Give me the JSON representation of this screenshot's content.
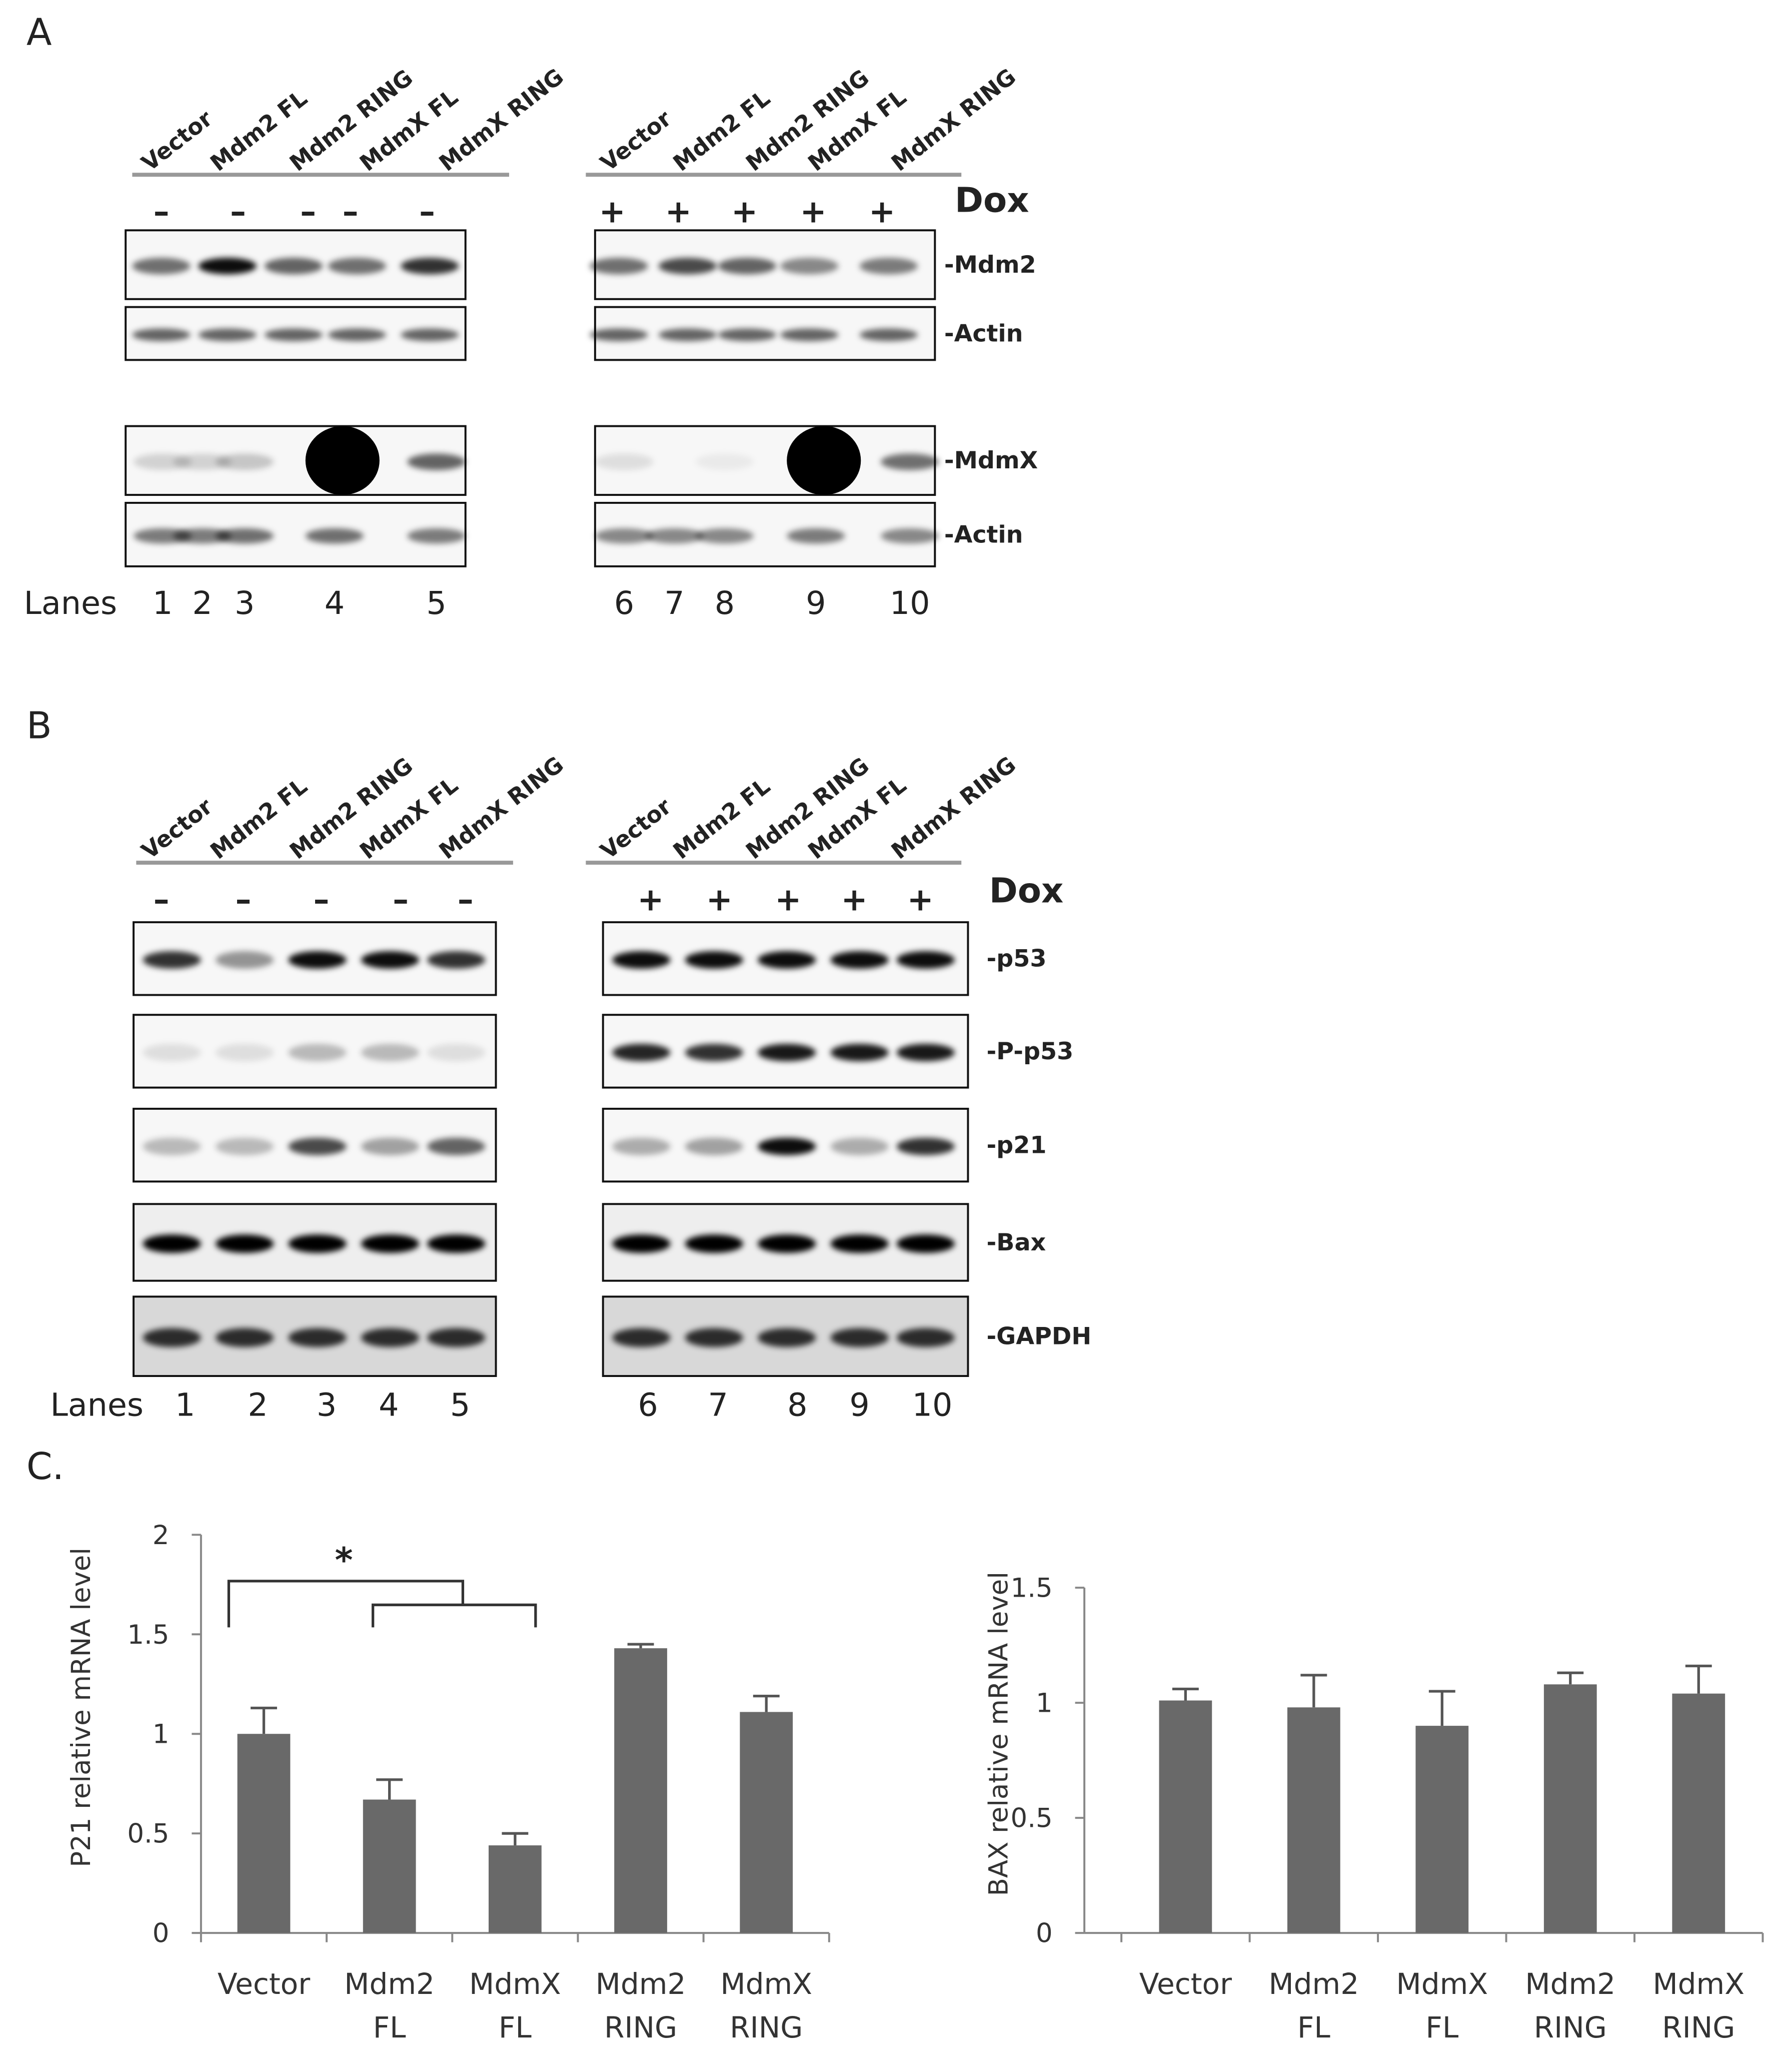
{
  "panels": [
    {
      "label": "A",
      "groups": [
        {
          "lanes": [
            "Vector",
            "Mdm2 FL",
            "Mdm2 RING",
            "MdmX FL",
            "MdmX RING"
          ],
          "dox": [
            "–",
            "–",
            "–",
            "–",
            "–"
          ]
        },
        {
          "lanes": [
            "Vector",
            "Mdm2 FL",
            "Mdm2 RING",
            "MdmX FL",
            "MdmX RING"
          ],
          "dox": [
            "+",
            "+",
            "+",
            "+",
            "+"
          ]
        }
      ],
      "dox_label": "Dox",
      "proteins": [
        "-Mdm2",
        "-Actin",
        "-MdmX",
        "-Actin"
      ],
      "lanes_label": "Lanes",
      "lane_numbers": [
        [
          1,
          2,
          3,
          4,
          5
        ],
        [
          6,
          7,
          8,
          9,
          10
        ]
      ]
    },
    {
      "label": "B",
      "groups": [
        {
          "lanes": [
            "Vector",
            "Mdm2 FL",
            "Mdm2 RING",
            "MdmX FL",
            "MdmX RING"
          ],
          "dox": [
            "–",
            "–",
            "–",
            "–",
            "–"
          ]
        },
        {
          "lanes": [
            "Vector",
            "Mdm2 FL",
            "Mdm2 RING",
            "MdmX FL",
            "MdmX RING"
          ],
          "dox": [
            "+",
            "+",
            "+",
            "+",
            "+"
          ]
        }
      ],
      "dox_label": "Dox",
      "proteins": [
        "-p53",
        "-P-p53",
        "-p21",
        "-Bax",
        "-GAPDH"
      ],
      "lanes_label": "Lanes",
      "lane_numbers": [
        [
          1,
          2,
          3,
          4,
          5
        ],
        [
          6,
          7,
          8,
          9,
          10
        ]
      ]
    }
  ],
  "chart_label": "C.",
  "chart_data": [
    {
      "type": "bar",
      "y_label": "P21 relative mRNA level",
      "categories": [
        [
          "Vector"
        ],
        [
          "Mdm2",
          "FL"
        ],
        [
          "MdmX",
          "FL"
        ],
        [
          "Mdm2",
          "RING"
        ],
        [
          "MdmX",
          "RING"
        ]
      ],
      "values": [
        1.0,
        0.67,
        0.44,
        1.43,
        1.11
      ],
      "errors": [
        0.13,
        0.1,
        0.06,
        0.02,
        0.08
      ],
      "color": "#696969",
      "ylim": [
        0,
        2
      ],
      "yticks": [
        0,
        0.5,
        1,
        1.5,
        2
      ],
      "annotation": "*"
    },
    {
      "type": "bar",
      "y_label": "BAX relative mRNA level",
      "categories": [
        [
          "Vector"
        ],
        [
          "Mdm2",
          "FL"
        ],
        [
          "MdmX",
          "FL"
        ],
        [
          "Mdm2",
          "RING"
        ],
        [
          "MdmX",
          "RING"
        ]
      ],
      "values": [
        1.01,
        0.98,
        0.9,
        1.08,
        1.04
      ],
      "errors": [
        0.05,
        0.14,
        0.15,
        0.05,
        0.12
      ],
      "color": "#696969",
      "ylim": [
        0,
        1.5
      ],
      "yticks": [
        0,
        0.5,
        1,
        1.5
      ]
    }
  ]
}
